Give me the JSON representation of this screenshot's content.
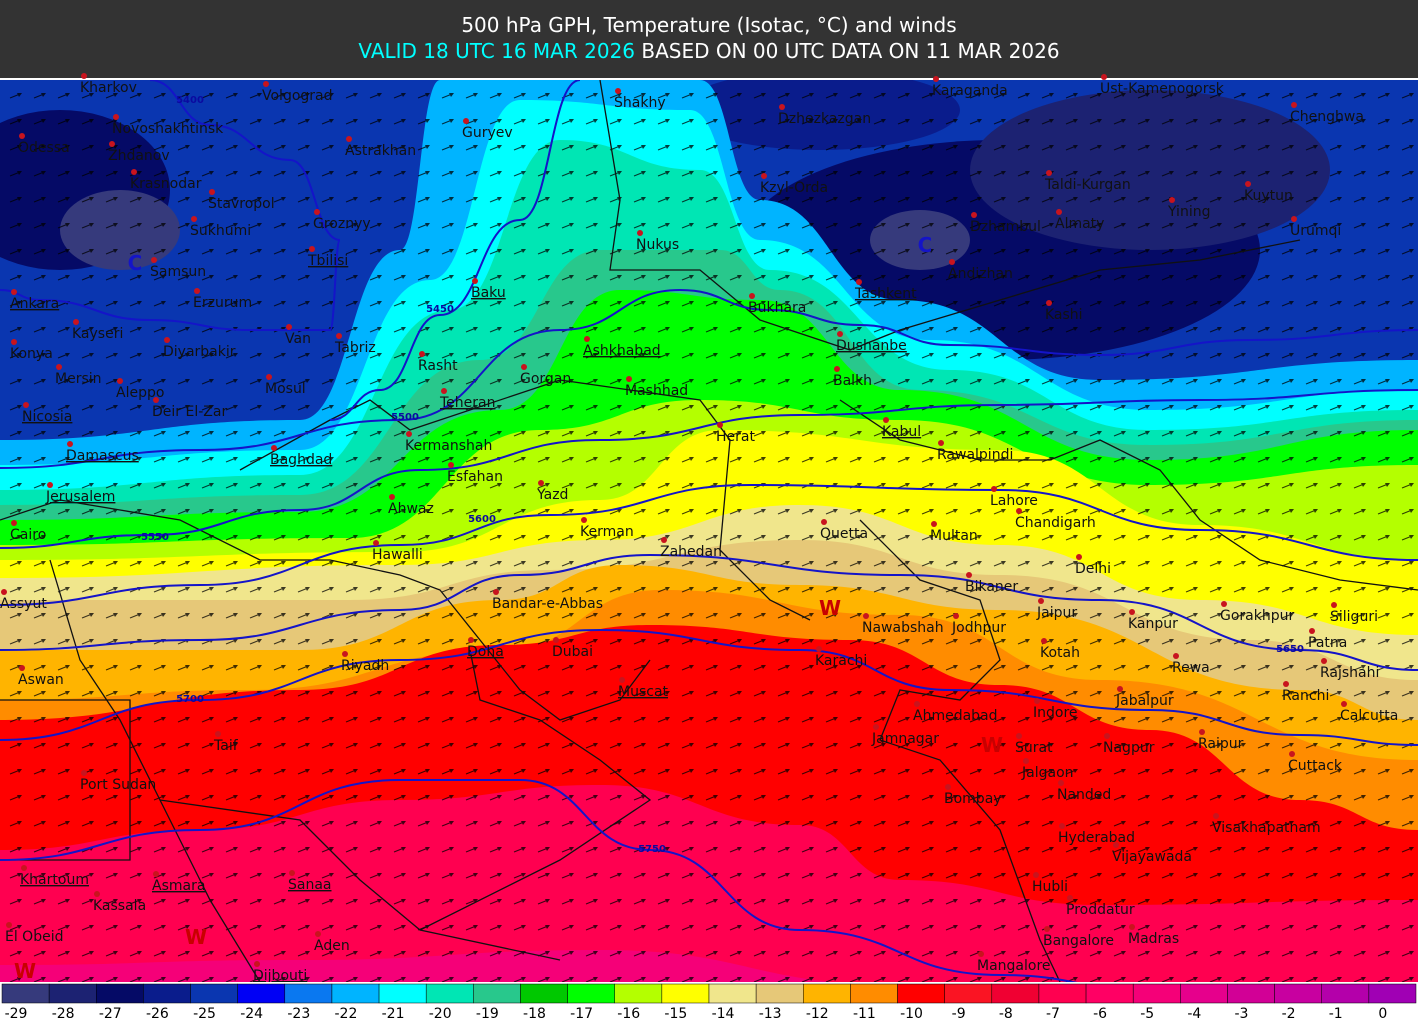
{
  "header": {
    "title": "500 hPa GPH, Temperature (Isotac, °C) and winds",
    "valid": "VALID 18 UTC 16 MAR 2026",
    "based": "BASED ON 00 UTC DATA ON 11 MAR 2026"
  },
  "colorbar": {
    "values": [
      -29,
      -28,
      -27,
      -26,
      -25,
      -24,
      -23,
      -22,
      -21,
      -20,
      -19,
      -18,
      -17,
      -16,
      -15,
      -14,
      -13,
      -12,
      -11,
      -10,
      -9,
      -8,
      -7,
      -6,
      -5,
      -4,
      -3,
      -2,
      -1,
      0
    ],
    "colors": [
      "#363a7c",
      "#1c2272",
      "#050a66",
      "#0a1c8c",
      "#0a36b0",
      "#0000f5",
      "#0a78f0",
      "#00b4ff",
      "#00ffff",
      "#00e6b4",
      "#28c88c",
      "#00c800",
      "#00ff00",
      "#b4ff00",
      "#ffff00",
      "#f0e68c",
      "#e6c878",
      "#ffb400",
      "#ff8c00",
      "#ff0000",
      "#fa1423",
      "#f00032",
      "#ff0050",
      "#ff0064",
      "#f50078",
      "#e6008c",
      "#d20096",
      "#c800a0",
      "#b400aa",
      "#a000b4"
    ]
  },
  "contours": [
    {
      "label": 5400
    },
    {
      "label": 5450
    },
    {
      "label": 5500
    },
    {
      "label": 5550
    },
    {
      "label": 5600
    },
    {
      "label": 5650
    },
    {
      "label": 5700
    },
    {
      "label": 5750
    }
  ],
  "markers": [
    "C",
    "C",
    "W",
    "W",
    "W",
    "W"
  ],
  "cities": [
    {
      "name": "Kharkov"
    },
    {
      "name": "Volgograd"
    },
    {
      "name": "Novoshakhtinsk"
    },
    {
      "name": "Odessa"
    },
    {
      "name": "Zhdanov"
    },
    {
      "name": "Astrakhan"
    },
    {
      "name": "Guryev"
    },
    {
      "name": "Shakhy"
    },
    {
      "name": "Karaganda"
    },
    {
      "name": "Ust-Kamenogorsk"
    },
    {
      "name": "Dzhezkazgan"
    },
    {
      "name": "Chenghwa"
    },
    {
      "name": "Krasnodar"
    },
    {
      "name": "Stavropol"
    },
    {
      "name": "Kzyl-Orda"
    },
    {
      "name": "Taldi-Kurgan"
    },
    {
      "name": "Yining"
    },
    {
      "name": "Kuytun"
    },
    {
      "name": "Sukhumi"
    },
    {
      "name": "Groznyy"
    },
    {
      "name": "Nukus"
    },
    {
      "name": "Dzhambul"
    },
    {
      "name": "Almaty"
    },
    {
      "name": "Urumqi"
    },
    {
      "name": "Tbilisi",
      "capital": true
    },
    {
      "name": "Samsun"
    },
    {
      "name": "Baku",
      "capital": true
    },
    {
      "name": "Tashkent",
      "capital": true
    },
    {
      "name": "Andizhan"
    },
    {
      "name": "Ankara",
      "capital": true
    },
    {
      "name": "Erzurum"
    },
    {
      "name": "Bukhara"
    },
    {
      "name": "Kashi"
    },
    {
      "name": "Kayseri"
    },
    {
      "name": "Van"
    },
    {
      "name": "Tabriz"
    },
    {
      "name": "Dushanbe",
      "capital": true
    },
    {
      "name": "Konya"
    },
    {
      "name": "Diyarbakir"
    },
    {
      "name": "Ashkhabad",
      "capital": true
    },
    {
      "name": "Rasht"
    },
    {
      "name": "Mersin"
    },
    {
      "name": "Gorgan"
    },
    {
      "name": "Balkh"
    },
    {
      "name": "Aleppo"
    },
    {
      "name": "Mosul"
    },
    {
      "name": "Mashhad"
    },
    {
      "name": "Nicosia",
      "capital": true
    },
    {
      "name": "Deir El-Zar"
    },
    {
      "name": "Teheran",
      "capital": true
    },
    {
      "name": "Herat"
    },
    {
      "name": "Kabul",
      "capital": true
    },
    {
      "name": "Rawalpindi"
    },
    {
      "name": "Kermanshah"
    },
    {
      "name": "Damascus",
      "capital": true
    },
    {
      "name": "Baghdad",
      "capital": true
    },
    {
      "name": "Esfahan"
    },
    {
      "name": "Yazd"
    },
    {
      "name": "Jerusalem",
      "capital": true
    },
    {
      "name": "Lahore"
    },
    {
      "name": "Ahwaz"
    },
    {
      "name": "Chandigarh"
    },
    {
      "name": "Cairo"
    },
    {
      "name": "Kerman"
    },
    {
      "name": "Quetta"
    },
    {
      "name": "Multan"
    },
    {
      "name": "Hawalli"
    },
    {
      "name": "Zahedan"
    },
    {
      "name": "Delhi"
    },
    {
      "name": "Bikaner"
    },
    {
      "name": "Bandar-e-Abbas"
    },
    {
      "name": "Assyut"
    },
    {
      "name": "Jaipur"
    },
    {
      "name": "Kanpur"
    },
    {
      "name": "Gorakhpur"
    },
    {
      "name": "Siliguri"
    },
    {
      "name": "Nawabshah"
    },
    {
      "name": "Jodhpur"
    },
    {
      "name": "Karachi"
    },
    {
      "name": "Patna"
    },
    {
      "name": "Doha",
      "capital": true
    },
    {
      "name": "Dubai"
    },
    {
      "name": "Riyadh"
    },
    {
      "name": "Kotah"
    },
    {
      "name": "Rewa"
    },
    {
      "name": "Rajshahi"
    },
    {
      "name": "Aswan"
    },
    {
      "name": "Muscat",
      "capital": true
    },
    {
      "name": "Ranchi"
    },
    {
      "name": "Jabalpur"
    },
    {
      "name": "Ahmedabad"
    },
    {
      "name": "Indore"
    },
    {
      "name": "Calcutta"
    },
    {
      "name": "Taif"
    },
    {
      "name": "Jamnagar"
    },
    {
      "name": "Surat"
    },
    {
      "name": "Nagpur"
    },
    {
      "name": "Raipur"
    },
    {
      "name": "Cuttack"
    },
    {
      "name": "Jalgaon"
    },
    {
      "name": "Port Sudan"
    },
    {
      "name": "Bombay"
    },
    {
      "name": "Nanded"
    },
    {
      "name": "Visakhapatnam"
    },
    {
      "name": "Hyderabad"
    },
    {
      "name": "Vijayawada"
    },
    {
      "name": "Khartoum",
      "capital": true
    },
    {
      "name": "Asmara",
      "capital": true
    },
    {
      "name": "Sanaa",
      "capital": true
    },
    {
      "name": "Hubli"
    },
    {
      "name": "Kassala"
    },
    {
      "name": "Proddatur"
    },
    {
      "name": "El Obeid"
    },
    {
      "name": "Aden"
    },
    {
      "name": "Bangalore"
    },
    {
      "name": "Madras"
    },
    {
      "name": "Dijbouti",
      "capital": true
    },
    {
      "name": "Mangalore"
    }
  ]
}
